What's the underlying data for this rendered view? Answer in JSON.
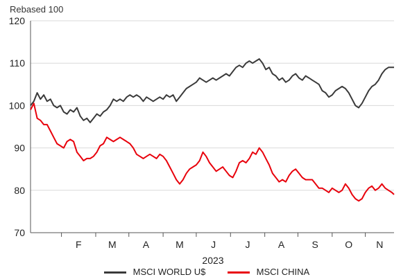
{
  "chart_data": {
    "type": "line",
    "ylabel": "Rebased 100",
    "xlabel": "2023",
    "ylim": [
      70,
      120
    ],
    "yticks": [
      70,
      80,
      90,
      100,
      110,
      120
    ],
    "month_labels": [
      "F",
      "M",
      "A",
      "M",
      "J",
      "J",
      "A",
      "S",
      "O",
      "N"
    ],
    "grid": true,
    "legend": "bottom",
    "x_domain_days": [
      0,
      329
    ],
    "series": [
      {
        "name": "MSCI WORLD U$",
        "color": "#3a3a3a",
        "points": [
          [
            0,
            100
          ],
          [
            3,
            101
          ],
          [
            6,
            103
          ],
          [
            9,
            101.5
          ],
          [
            12,
            102.5
          ],
          [
            15,
            101
          ],
          [
            18,
            101.5
          ],
          [
            21,
            100
          ],
          [
            24,
            99.5
          ],
          [
            27,
            100
          ],
          [
            30,
            98.5
          ],
          [
            33,
            98
          ],
          [
            36,
            99
          ],
          [
            39,
            98.5
          ],
          [
            42,
            99.5
          ],
          [
            45,
            97.5
          ],
          [
            48,
            96.5
          ],
          [
            51,
            97
          ],
          [
            54,
            96
          ],
          [
            57,
            97
          ],
          [
            60,
            98
          ],
          [
            63,
            97.5
          ],
          [
            66,
            98.5
          ],
          [
            69,
            99
          ],
          [
            72,
            100
          ],
          [
            75,
            101.5
          ],
          [
            78,
            101
          ],
          [
            81,
            101.5
          ],
          [
            84,
            101
          ],
          [
            87,
            102
          ],
          [
            90,
            102.5
          ],
          [
            93,
            102
          ],
          [
            96,
            102.5
          ],
          [
            99,
            102
          ],
          [
            102,
            101
          ],
          [
            105,
            102
          ],
          [
            108,
            101.5
          ],
          [
            111,
            101
          ],
          [
            114,
            101.5
          ],
          [
            117,
            102
          ],
          [
            120,
            101.5
          ],
          [
            123,
            102.5
          ],
          [
            126,
            102
          ],
          [
            129,
            102.5
          ],
          [
            132,
            101
          ],
          [
            135,
            102
          ],
          [
            138,
            103
          ],
          [
            141,
            104
          ],
          [
            144,
            104.5
          ],
          [
            147,
            105
          ],
          [
            150,
            105.5
          ],
          [
            153,
            106.5
          ],
          [
            156,
            106
          ],
          [
            159,
            105.5
          ],
          [
            162,
            106
          ],
          [
            165,
            106.5
          ],
          [
            168,
            106
          ],
          [
            171,
            106.5
          ],
          [
            174,
            107
          ],
          [
            177,
            107.5
          ],
          [
            180,
            107
          ],
          [
            183,
            108
          ],
          [
            186,
            109
          ],
          [
            189,
            109.5
          ],
          [
            192,
            109
          ],
          [
            195,
            110
          ],
          [
            198,
            110.5
          ],
          [
            201,
            110
          ],
          [
            204,
            110.5
          ],
          [
            207,
            111
          ],
          [
            210,
            110
          ],
          [
            213,
            108.5
          ],
          [
            216,
            109
          ],
          [
            219,
            107.5
          ],
          [
            222,
            107
          ],
          [
            225,
            106
          ],
          [
            228,
            106.5
          ],
          [
            231,
            105.5
          ],
          [
            234,
            106
          ],
          [
            237,
            107
          ],
          [
            240,
            107.5
          ],
          [
            243,
            106.5
          ],
          [
            246,
            106
          ],
          [
            249,
            107
          ],
          [
            252,
            106.5
          ],
          [
            255,
            106
          ],
          [
            258,
            105.5
          ],
          [
            261,
            105
          ],
          [
            264,
            103.5
          ],
          [
            267,
            103
          ],
          [
            270,
            102
          ],
          [
            273,
            102.5
          ],
          [
            276,
            103.5
          ],
          [
            279,
            104
          ],
          [
            282,
            104.5
          ],
          [
            285,
            104
          ],
          [
            288,
            103
          ],
          [
            291,
            101.5
          ],
          [
            294,
            100
          ],
          [
            297,
            99.5
          ],
          [
            300,
            100.5
          ],
          [
            303,
            102
          ],
          [
            306,
            103.5
          ],
          [
            309,
            104.5
          ],
          [
            312,
            105
          ],
          [
            315,
            106
          ],
          [
            318,
            107.5
          ],
          [
            321,
            108.5
          ],
          [
            324,
            109
          ],
          [
            327,
            109
          ],
          [
            329,
            109
          ]
        ]
      },
      {
        "name": "MSCI CHINA",
        "color": "#e8000b",
        "points": [
          [
            0,
            99
          ],
          [
            3,
            100.5
          ],
          [
            6,
            97
          ],
          [
            9,
            96.5
          ],
          [
            12,
            95.5
          ],
          [
            15,
            95.5
          ],
          [
            18,
            94
          ],
          [
            21,
            92.5
          ],
          [
            24,
            91
          ],
          [
            27,
            90.5
          ],
          [
            30,
            90
          ],
          [
            33,
            91.5
          ],
          [
            36,
            92
          ],
          [
            39,
            91.5
          ],
          [
            42,
            89
          ],
          [
            45,
            88
          ],
          [
            48,
            87
          ],
          [
            51,
            87.5
          ],
          [
            54,
            87.5
          ],
          [
            57,
            88
          ],
          [
            60,
            89
          ],
          [
            63,
            90.5
          ],
          [
            66,
            91
          ],
          [
            69,
            92.5
          ],
          [
            72,
            92
          ],
          [
            75,
            91.5
          ],
          [
            78,
            92
          ],
          [
            81,
            92.5
          ],
          [
            84,
            92
          ],
          [
            87,
            91.5
          ],
          [
            90,
            91
          ],
          [
            93,
            90
          ],
          [
            96,
            88.5
          ],
          [
            99,
            88
          ],
          [
            102,
            87.5
          ],
          [
            105,
            88
          ],
          [
            108,
            88.5
          ],
          [
            111,
            88
          ],
          [
            114,
            87.5
          ],
          [
            117,
            88.5
          ],
          [
            120,
            88
          ],
          [
            123,
            87
          ],
          [
            126,
            85.5
          ],
          [
            129,
            84
          ],
          [
            132,
            82.5
          ],
          [
            135,
            81.5
          ],
          [
            138,
            82.5
          ],
          [
            141,
            84
          ],
          [
            144,
            85
          ],
          [
            147,
            85.5
          ],
          [
            150,
            86
          ],
          [
            153,
            87
          ],
          [
            156,
            89
          ],
          [
            159,
            88
          ],
          [
            162,
            86.5
          ],
          [
            165,
            85.5
          ],
          [
            168,
            84.5
          ],
          [
            171,
            85
          ],
          [
            174,
            85.5
          ],
          [
            177,
            84.5
          ],
          [
            180,
            83.5
          ],
          [
            183,
            83
          ],
          [
            186,
            84.5
          ],
          [
            189,
            86.5
          ],
          [
            192,
            87
          ],
          [
            195,
            86.5
          ],
          [
            198,
            87.5
          ],
          [
            201,
            89
          ],
          [
            204,
            88.5
          ],
          [
            207,
            90
          ],
          [
            210,
            89
          ],
          [
            213,
            87.5
          ],
          [
            216,
            86
          ],
          [
            219,
            84
          ],
          [
            222,
            83
          ],
          [
            225,
            82
          ],
          [
            228,
            82.5
          ],
          [
            231,
            82
          ],
          [
            234,
            83.5
          ],
          [
            237,
            84.5
          ],
          [
            240,
            85
          ],
          [
            243,
            84
          ],
          [
            246,
            83
          ],
          [
            249,
            82.5
          ],
          [
            252,
            82.5
          ],
          [
            255,
            82.5
          ],
          [
            258,
            81.5
          ],
          [
            261,
            80.5
          ],
          [
            264,
            80.5
          ],
          [
            267,
            80
          ],
          [
            270,
            79.5
          ],
          [
            273,
            80.5
          ],
          [
            276,
            80
          ],
          [
            279,
            79.5
          ],
          [
            282,
            80
          ],
          [
            285,
            81.5
          ],
          [
            288,
            80.5
          ],
          [
            291,
            79
          ],
          [
            294,
            78
          ],
          [
            297,
            77.5
          ],
          [
            300,
            78
          ],
          [
            303,
            79.5
          ],
          [
            306,
            80.5
          ],
          [
            309,
            81
          ],
          [
            312,
            80
          ],
          [
            315,
            80.5
          ],
          [
            318,
            81.5
          ],
          [
            321,
            80.5
          ],
          [
            324,
            80
          ],
          [
            327,
            79.5
          ],
          [
            329,
            79
          ]
        ]
      }
    ]
  }
}
